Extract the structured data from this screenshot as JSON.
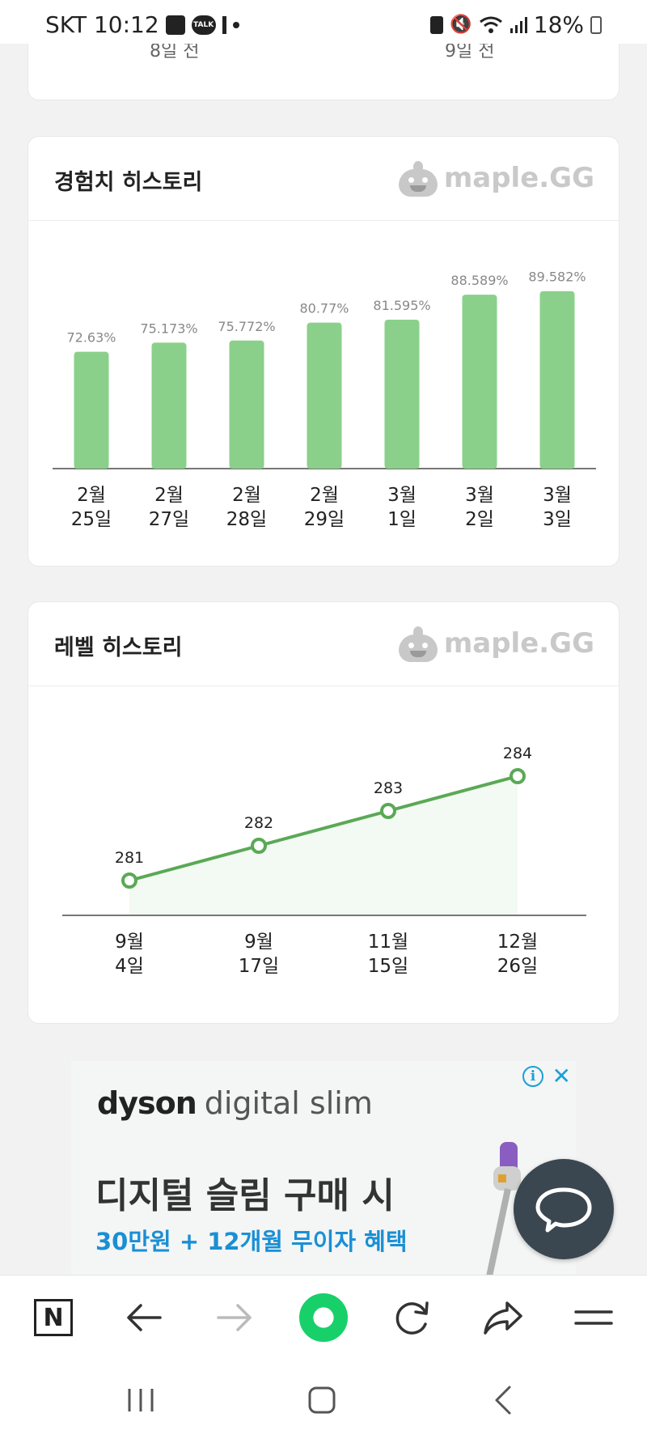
{
  "status_bar": {
    "carrier_time": "SKT 10:12",
    "talk_badge": "TALK",
    "battery": "18%",
    "icons": [
      "gallery-icon",
      "kakaotalk-icon",
      "signal-bar-icon",
      "dot-icon",
      "battery-saver-icon",
      "mute-icon",
      "wifi-icon",
      "cell-signal-icon",
      "battery-icon"
    ]
  },
  "top_card": {
    "left_ago": "8일 전",
    "right_ago": "9일 전"
  },
  "exp_history": {
    "title": "경험치 히스토리",
    "logo_text": "maple.GG",
    "chart_data": {
      "type": "bar",
      "categories": [
        [
          "2월",
          "25일"
        ],
        [
          "2월",
          "27일"
        ],
        [
          "2월",
          "28일"
        ],
        [
          "2월",
          "29일"
        ],
        [
          "3월",
          "1일"
        ],
        [
          "3월",
          "2일"
        ],
        [
          "3월",
          "3일"
        ]
      ],
      "values": [
        72.63,
        75.173,
        75.772,
        80.77,
        81.595,
        88.589,
        89.582
      ],
      "value_labels": [
        "72.63%",
        "75.173%",
        "75.772%",
        "80.77%",
        "81.595%",
        "88.589%",
        "89.582%"
      ],
      "bar_color": "#8ad08a"
    }
  },
  "level_history": {
    "title": "레벨 히스토리",
    "logo_text": "maple.GG",
    "chart_data": {
      "type": "line",
      "categories": [
        [
          "9월",
          "4일"
        ],
        [
          "9월",
          "17일"
        ],
        [
          "11월",
          "15일"
        ],
        [
          "12월",
          "26일"
        ]
      ],
      "values": [
        281,
        282,
        283,
        284
      ],
      "value_labels": [
        "281",
        "282",
        "283",
        "284"
      ],
      "line_color": "#5aa955"
    }
  },
  "ad": {
    "brand_bold": "dyson",
    "brand_rest": "digital slim",
    "headline": "디지털 슬림 구매 시",
    "subline": "30만원 + 12개월 무이자 혜택",
    "info_glyph": "i",
    "close_glyph": "✕"
  },
  "browser_toolbar": {
    "buttons": [
      "naver-home",
      "back",
      "forward",
      "green-dot",
      "reload",
      "share",
      "menu"
    ],
    "home_letter": "N"
  },
  "system_nav": {
    "buttons": [
      "recent-apps",
      "home",
      "back"
    ]
  }
}
